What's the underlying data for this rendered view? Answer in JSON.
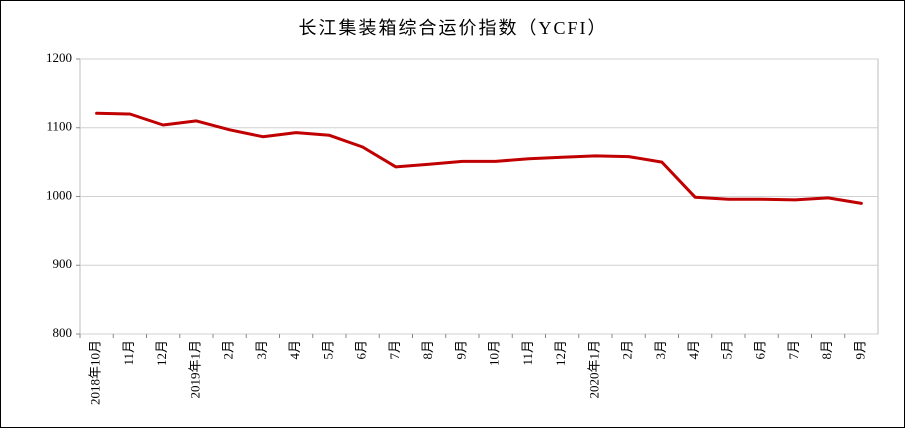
{
  "chart_data": {
    "type": "line",
    "title": "长江集装箱综合运价指数（YCFI）",
    "categories": [
      "2018年10月",
      "11月",
      "12月",
      "2019年1月",
      "2月",
      "3月",
      "4月",
      "5月",
      "6月",
      "7月",
      "8月",
      "9月",
      "10月",
      "11月",
      "12月",
      "2020年1月",
      "2月",
      "3月",
      "4月",
      "5月",
      "6月",
      "7月",
      "8月",
      "9月"
    ],
    "values": [
      1121,
      1120,
      1104,
      1110,
      1097,
      1087,
      1093,
      1089,
      1072,
      1043,
      1047,
      1051,
      1051,
      1055,
      1057,
      1059,
      1058,
      1050,
      999,
      996,
      996,
      995,
      998,
      990
    ],
    "color": "#c00000",
    "ylim": [
      800,
      1200
    ],
    "yticks": [
      800,
      900,
      1000,
      1100,
      1200
    ],
    "grid": true
  }
}
